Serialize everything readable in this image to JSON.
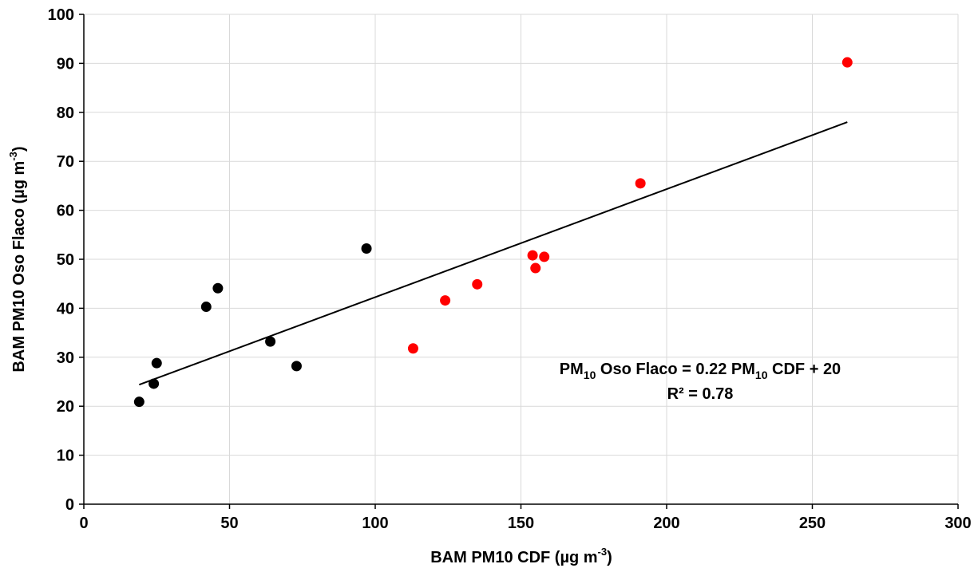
{
  "chart_data": {
    "type": "scatter",
    "xlabel": {
      "main": "BAM PM10 CDF (µg m",
      "sup": "-3",
      "close": ")"
    },
    "ylabel": {
      "main": "BAM PM10 Oso Flaco (µg m",
      "sup": "-3",
      "close": ")"
    },
    "xlim": [
      0,
      300
    ],
    "ylim": [
      0,
      100
    ],
    "xticks": [
      0,
      50,
      100,
      150,
      200,
      250,
      300
    ],
    "yticks": [
      0,
      10,
      20,
      30,
      40,
      50,
      60,
      70,
      80,
      90,
      100
    ],
    "grid": true,
    "series": [
      {
        "color": "#000000",
        "points": [
          {
            "x": 19,
            "y": 20.9
          },
          {
            "x": 24,
            "y": 24.6
          },
          {
            "x": 25,
            "y": 28.8
          },
          {
            "x": 42,
            "y": 40.3
          },
          {
            "x": 46,
            "y": 44.1
          },
          {
            "x": 64,
            "y": 33.2
          },
          {
            "x": 73,
            "y": 28.2
          },
          {
            "x": 97,
            "y": 52.2
          }
        ]
      },
      {
        "color": "#ff0000",
        "points": [
          {
            "x": 113,
            "y": 31.8
          },
          {
            "x": 124,
            "y": 41.6
          },
          {
            "x": 135,
            "y": 44.9
          },
          {
            "x": 154,
            "y": 50.8
          },
          {
            "x": 155,
            "y": 48.2
          },
          {
            "x": 158,
            "y": 50.5
          },
          {
            "x": 191,
            "y": 65.5
          },
          {
            "x": 262,
            "y": 90.2
          }
        ]
      }
    ],
    "trendline": {
      "x_start": 19,
      "y_start": 24.4,
      "x_end": 262,
      "y_end": 78.0,
      "color": "#000000"
    },
    "annotation": {
      "eq_pre": "PM",
      "eq_sub1": "10",
      "eq_mid": " Oso Flaco = 0.22 PM",
      "eq_sub2": "10",
      "eq_post": " CDF + 20",
      "r2": "R² = 0.78"
    }
  }
}
